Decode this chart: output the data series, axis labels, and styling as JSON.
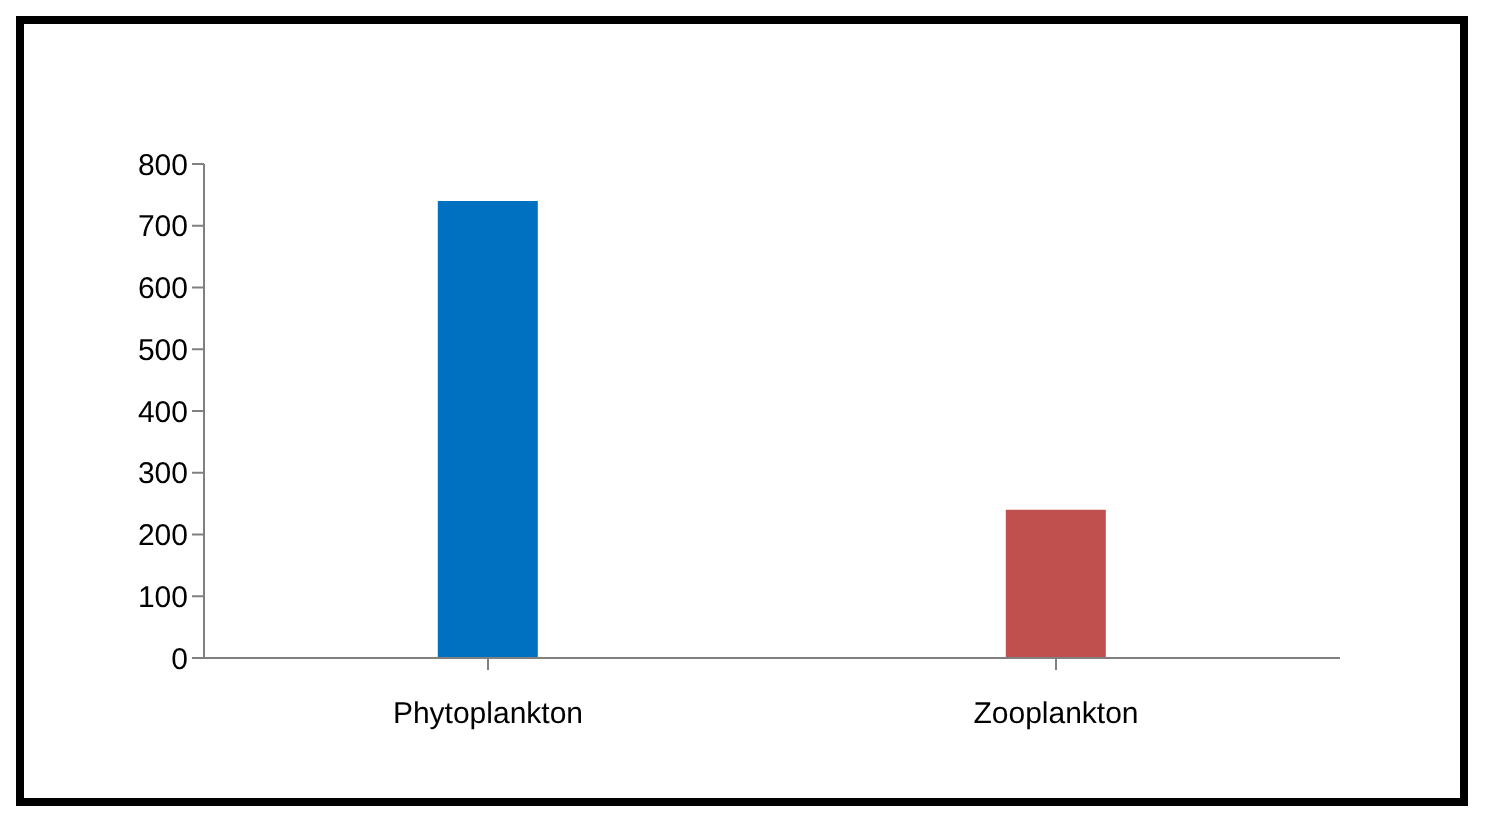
{
  "chart_data": {
    "type": "bar",
    "categories": [
      "Phytoplankton",
      "Zooplankton"
    ],
    "values": [
      740,
      240
    ],
    "colors": [
      "#0070c0",
      "#c0504d"
    ],
    "ylim": [
      0,
      800
    ],
    "yticks": [
      0,
      100,
      200,
      300,
      400,
      500,
      600,
      700,
      800
    ],
    "grid": false,
    "legend": false
  }
}
